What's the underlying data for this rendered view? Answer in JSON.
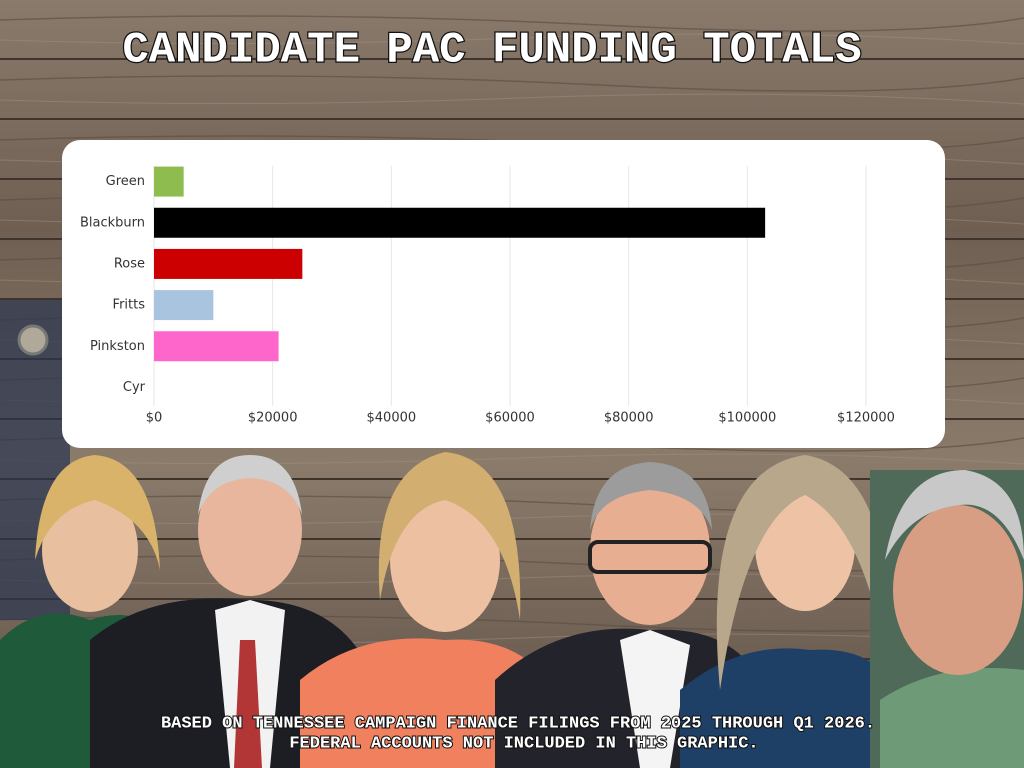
{
  "chart_data": {
    "type": "barh",
    "title": "CANDIDATE PAC FUNDING TOTALS",
    "categories": [
      "Green",
      "Blackburn",
      "Rose",
      "Fritts",
      "Pinkston",
      "Cyr"
    ],
    "values": [
      5000,
      103000,
      25000,
      10000,
      21000,
      0
    ],
    "colors": [
      "#8fbc4f",
      "#000000",
      "#cc0000",
      "#a9c4de",
      "#ff66cc",
      "#888888"
    ],
    "xlim": [
      0,
      120000
    ],
    "xticks": [
      {
        "value": 0,
        "label": "$0"
      },
      {
        "value": 20000,
        "label": "$20000"
      },
      {
        "value": 40000,
        "label": "$40000"
      },
      {
        "value": 60000,
        "label": "$60000"
      },
      {
        "value": 80000,
        "label": "$80000"
      },
      {
        "value": 100000,
        "label": "$100000"
      },
      {
        "value": 120000,
        "label": "$120000"
      }
    ],
    "grid": true,
    "footnote": [
      "BASED ON TENNESSEE CAMPAIGN FINANCE FILINGS FROM 2025 THROUGH Q1 2026.",
      "FEDERAL ACCOUNTS NOT INCLUDED IN THIS GRAPHIC."
    ]
  }
}
